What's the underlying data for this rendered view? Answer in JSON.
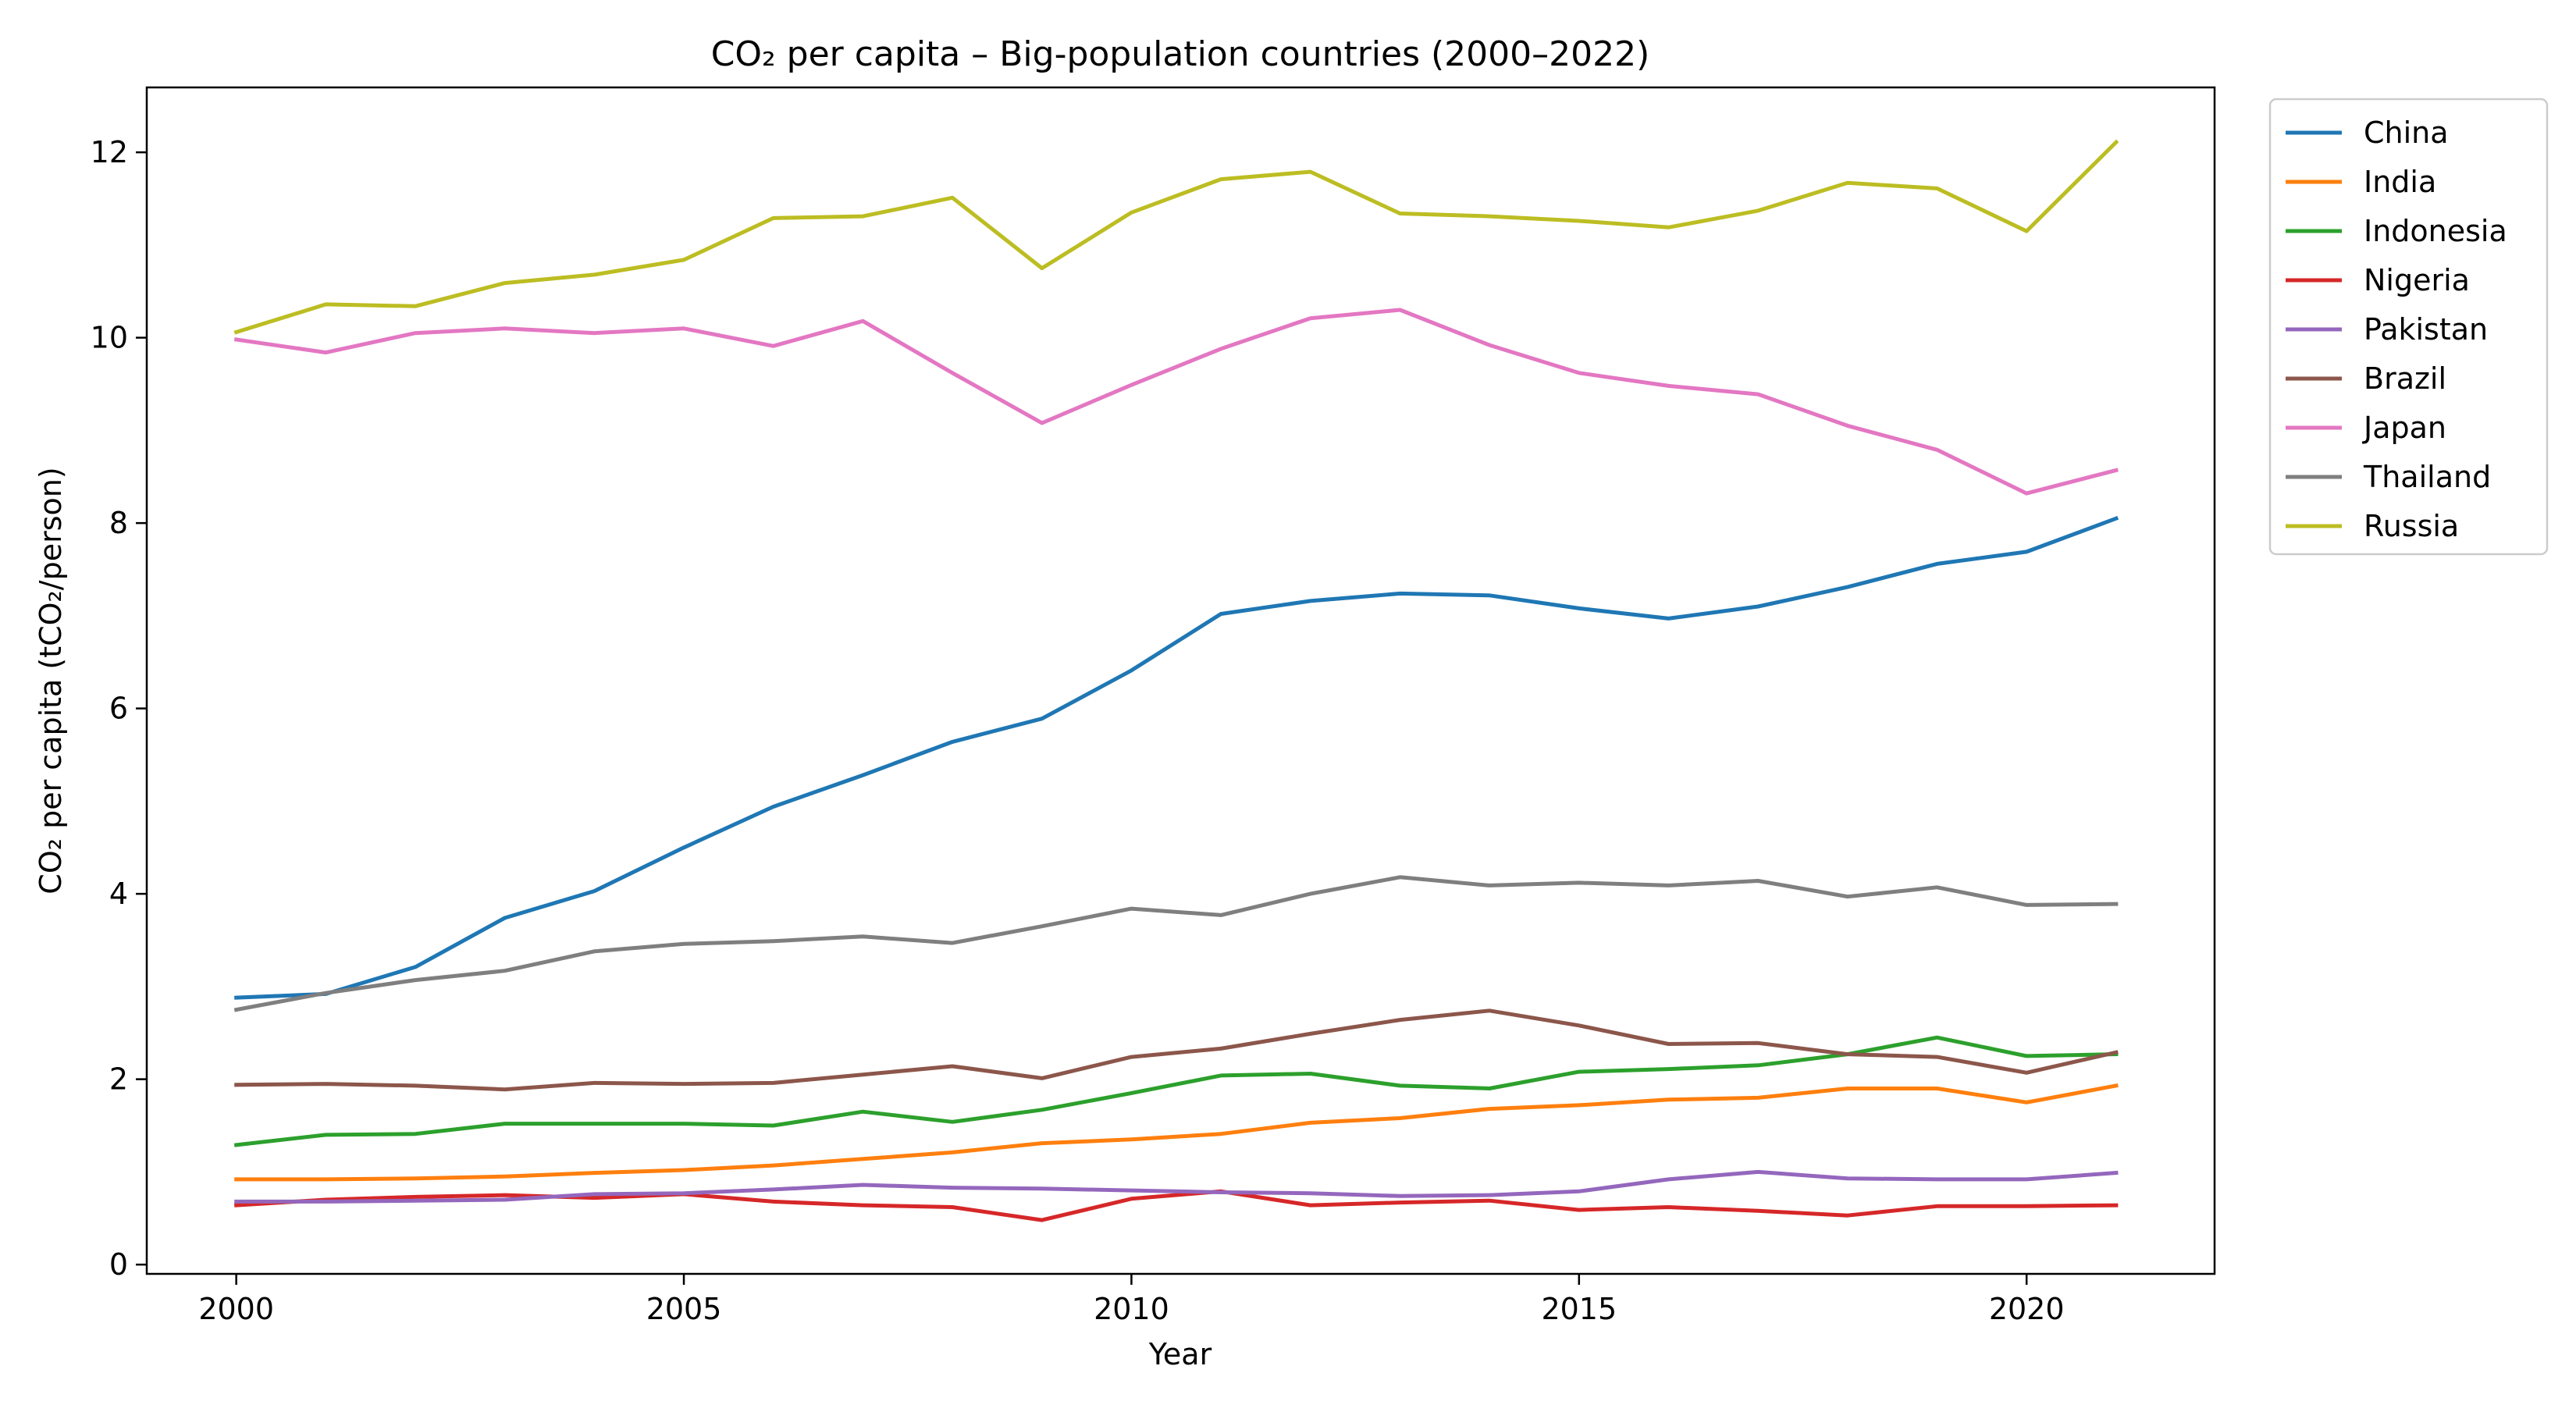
{
  "chart_data": {
    "type": "line",
    "title": "CO₂ per capita – Big-population countries (2000–2022)",
    "xlabel": "Year",
    "ylabel": "CO₂ per capita (tCO₂/person)",
    "xlim": [
      1999,
      2022.1
    ],
    "ylim": [
      -0.1,
      12.7
    ],
    "xticks": [
      2000,
      2005,
      2010,
      2015,
      2020
    ],
    "yticks": [
      0,
      2,
      4,
      6,
      8,
      10,
      12
    ],
    "grid": false,
    "legend_position": "outside-top-right",
    "x": [
      2000,
      2001,
      2002,
      2003,
      2004,
      2005,
      2006,
      2007,
      2008,
      2009,
      2010,
      2011,
      2012,
      2013,
      2014,
      2015,
      2016,
      2017,
      2018,
      2019,
      2020,
      2021
    ],
    "series": [
      {
        "name": "China",
        "color": "#1f77b4",
        "values": [
          2.88,
          2.92,
          3.21,
          3.74,
          4.03,
          4.5,
          4.94,
          5.28,
          5.64,
          5.89,
          6.41,
          7.02,
          7.16,
          7.24,
          7.22,
          7.08,
          6.97,
          7.1,
          7.31,
          7.56,
          7.69,
          8.05
        ]
      },
      {
        "name": "India",
        "color": "#ff7f0e",
        "values": [
          0.92,
          0.92,
          0.93,
          0.95,
          0.99,
          1.02,
          1.07,
          1.14,
          1.21,
          1.31,
          1.35,
          1.41,
          1.53,
          1.58,
          1.68,
          1.72,
          1.78,
          1.8,
          1.9,
          1.9,
          1.75,
          1.93
        ]
      },
      {
        "name": "Indonesia",
        "color": "#2ca02c",
        "values": [
          1.29,
          1.4,
          1.41,
          1.52,
          1.52,
          1.52,
          1.5,
          1.65,
          1.54,
          1.67,
          1.85,
          2.04,
          2.06,
          1.93,
          1.9,
          2.08,
          2.11,
          2.15,
          2.27,
          2.45,
          2.25,
          2.27
        ]
      },
      {
        "name": "Nigeria",
        "color": "#d62728",
        "values": [
          0.64,
          0.7,
          0.73,
          0.75,
          0.72,
          0.76,
          0.68,
          0.64,
          0.62,
          0.48,
          0.71,
          0.79,
          0.64,
          0.67,
          0.69,
          0.59,
          0.62,
          0.58,
          0.53,
          0.63,
          0.63,
          0.64
        ]
      },
      {
        "name": "Pakistan",
        "color": "#9467bd",
        "values": [
          0.68,
          0.68,
          0.69,
          0.7,
          0.76,
          0.77,
          0.81,
          0.86,
          0.83,
          0.82,
          0.8,
          0.78,
          0.77,
          0.74,
          0.75,
          0.79,
          0.92,
          1.0,
          0.93,
          0.92,
          0.92,
          0.99
        ]
      },
      {
        "name": "Brazil",
        "color": "#8c564b",
        "values": [
          1.94,
          1.95,
          1.93,
          1.89,
          1.96,
          1.95,
          1.96,
          2.05,
          2.14,
          2.01,
          2.24,
          2.33,
          2.49,
          2.64,
          2.74,
          2.58,
          2.38,
          2.39,
          2.27,
          2.24,
          2.07,
          2.29
        ]
      },
      {
        "name": "Japan",
        "color": "#e377c2",
        "values": [
          9.98,
          9.84,
          10.05,
          10.1,
          10.05,
          10.1,
          9.91,
          10.18,
          9.62,
          9.08,
          9.49,
          9.88,
          10.21,
          10.3,
          9.92,
          9.62,
          9.48,
          9.39,
          9.05,
          8.79,
          8.32,
          8.57
        ]
      },
      {
        "name": "Thailand",
        "color": "#7f7f7f",
        "values": [
          2.75,
          2.93,
          3.07,
          3.17,
          3.38,
          3.46,
          3.49,
          3.54,
          3.47,
          3.65,
          3.84,
          3.77,
          4.0,
          4.18,
          4.09,
          4.12,
          4.09,
          4.14,
          3.97,
          4.07,
          3.88,
          3.89
        ]
      },
      {
        "name": "Russia",
        "color": "#bcbd22",
        "values": [
          10.06,
          10.36,
          10.34,
          10.59,
          10.68,
          10.84,
          11.29,
          11.31,
          11.51,
          10.75,
          11.35,
          11.71,
          11.79,
          11.34,
          11.31,
          11.26,
          11.19,
          11.37,
          11.67,
          11.61,
          11.15,
          12.11
        ]
      }
    ]
  }
}
